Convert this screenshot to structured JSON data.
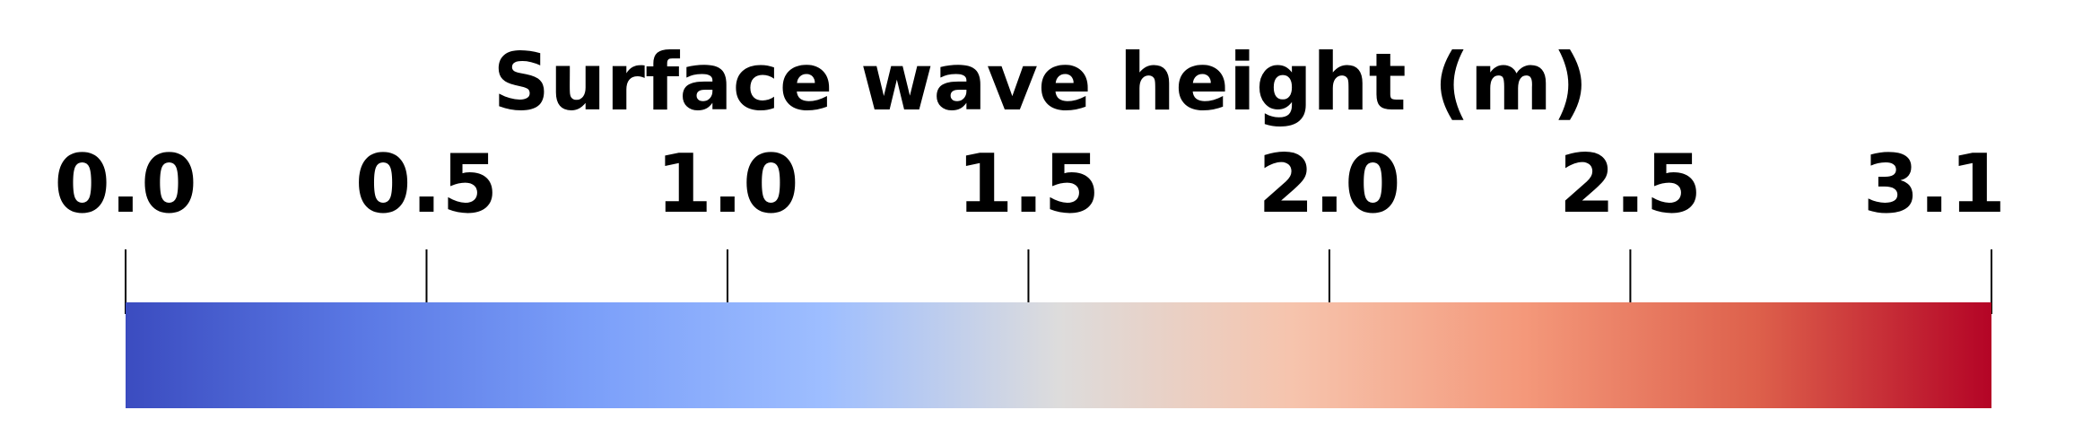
{
  "chart_data": {
    "type": "colorbar",
    "title": "Surface wave height (m)",
    "orientation": "horizontal",
    "range": [
      0.0,
      3.1
    ],
    "ticks": [
      {
        "value": 0.0,
        "label": "0.0"
      },
      {
        "value": 0.5,
        "label": "0.5"
      },
      {
        "value": 1.0,
        "label": "1.0"
      },
      {
        "value": 1.5,
        "label": "1.5"
      },
      {
        "value": 2.0,
        "label": "2.0"
      },
      {
        "value": 2.5,
        "label": "2.5"
      },
      {
        "value": 3.1,
        "label": "3.1"
      }
    ],
    "colormap": "coolwarm",
    "color_stops": [
      {
        "offset": 0.0,
        "color": "#3b4cc0"
      },
      {
        "offset": 0.125,
        "color": "#5a78e4"
      },
      {
        "offset": 0.25,
        "color": "#7b9ff9"
      },
      {
        "offset": 0.375,
        "color": "#9ebeff"
      },
      {
        "offset": 0.5,
        "color": "#dddcdc"
      },
      {
        "offset": 0.625,
        "color": "#f6c4ad"
      },
      {
        "offset": 0.75,
        "color": "#f4987a"
      },
      {
        "offset": 0.875,
        "color": "#dd604b"
      },
      {
        "offset": 1.0,
        "color": "#b40426"
      }
    ]
  }
}
